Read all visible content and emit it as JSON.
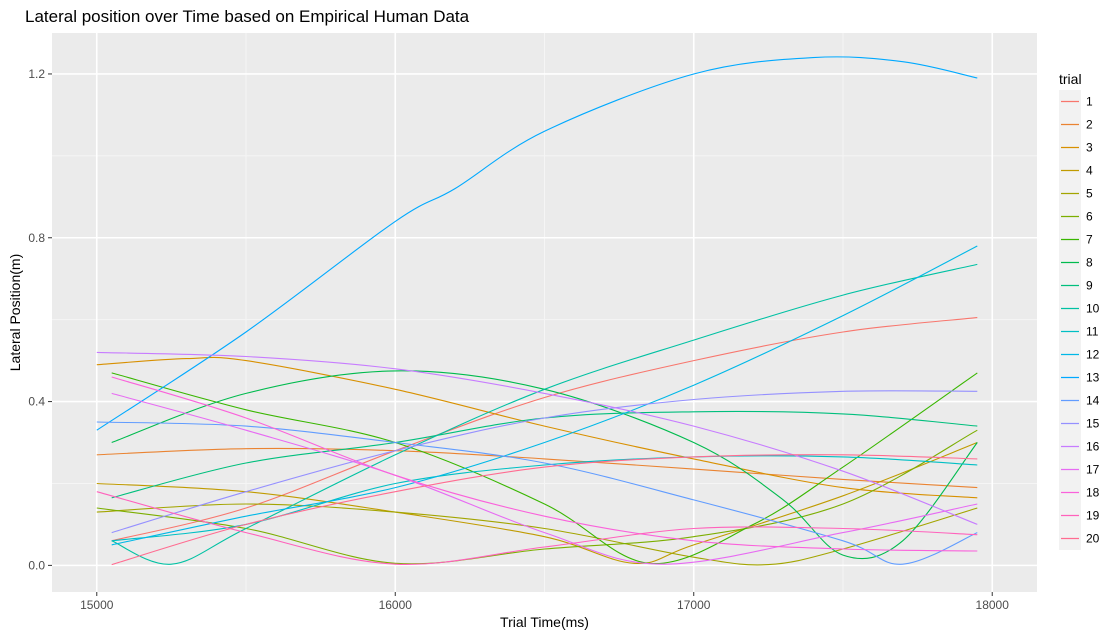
{
  "chart_data": {
    "type": "line",
    "title": "Lateral position over Time based on Empirical Human Data",
    "xlabel": "Trial Time(ms)",
    "ylabel": "Lateral Position(m)",
    "xlim": [
      14850,
      18150
    ],
    "ylim": [
      -0.065,
      1.3
    ],
    "xticks": [
      15000,
      16000,
      17000,
      18000
    ],
    "yticks": [
      0.0,
      0.4,
      0.8,
      1.2
    ],
    "ytick_labels": [
      "0.0",
      "0.4",
      "0.8",
      "1.2"
    ],
    "grid": true,
    "legend": {
      "title": "trial",
      "placement": "right"
    },
    "series": [
      {
        "name": "1",
        "color": "#F8766D",
        "points": [
          [
            15050,
            0.06
          ],
          [
            15500,
            0.14
          ],
          [
            16000,
            0.28
          ],
          [
            16500,
            0.41
          ],
          [
            17000,
            0.5
          ],
          [
            17500,
            0.57
          ],
          [
            17950,
            0.605
          ]
        ]
      },
      {
        "name": "2",
        "color": "#EA8331",
        "points": [
          [
            15000,
            0.27
          ],
          [
            15500,
            0.285
          ],
          [
            16000,
            0.28
          ],
          [
            16500,
            0.26
          ],
          [
            17000,
            0.235
          ],
          [
            17500,
            0.21
          ],
          [
            17950,
            0.19
          ]
        ]
      },
      {
        "name": "3",
        "color": "#D89000",
        "points": [
          [
            15000,
            0.49
          ],
          [
            15300,
            0.505
          ],
          [
            15500,
            0.5
          ],
          [
            16000,
            0.43
          ],
          [
            16500,
            0.34
          ],
          [
            17000,
            0.26
          ],
          [
            17500,
            0.19
          ],
          [
            17950,
            0.165
          ]
        ]
      },
      {
        "name": "4",
        "color": "#C09B00",
        "points": [
          [
            15000,
            0.2
          ],
          [
            15500,
            0.18
          ],
          [
            16000,
            0.13
          ],
          [
            16500,
            0.07
          ],
          [
            16800,
            0.005
          ],
          [
            17000,
            0.05
          ],
          [
            17500,
            0.17
          ],
          [
            17950,
            0.3
          ]
        ]
      },
      {
        "name": "5",
        "color": "#A3A500",
        "points": [
          [
            15000,
            0.13
          ],
          [
            15500,
            0.15
          ],
          [
            16000,
            0.13
          ],
          [
            16500,
            0.09
          ],
          [
            17000,
            0.02
          ],
          [
            17250,
            0.002
          ],
          [
            17500,
            0.04
          ],
          [
            17950,
            0.14
          ]
        ]
      },
      {
        "name": "6",
        "color": "#7CAE00",
        "points": [
          [
            15000,
            0.14
          ],
          [
            15500,
            0.09
          ],
          [
            16000,
            0.005
          ],
          [
            16500,
            0.04
          ],
          [
            17000,
            0.07
          ],
          [
            17500,
            0.15
          ],
          [
            17950,
            0.33
          ]
        ]
      },
      {
        "name": "7",
        "color": "#39B600",
        "points": [
          [
            15050,
            0.47
          ],
          [
            15500,
            0.38
          ],
          [
            16000,
            0.3
          ],
          [
            16500,
            0.15
          ],
          [
            16850,
            0.005
          ],
          [
            17200,
            0.1
          ],
          [
            17500,
            0.24
          ],
          [
            17950,
            0.47
          ]
        ]
      },
      {
        "name": "8",
        "color": "#00BB4E",
        "points": [
          [
            15050,
            0.3
          ],
          [
            15500,
            0.42
          ],
          [
            16000,
            0.475
          ],
          [
            16500,
            0.43
          ],
          [
            17000,
            0.3
          ],
          [
            17300,
            0.16
          ],
          [
            17500,
            0.025
          ],
          [
            17700,
            0.06
          ],
          [
            17950,
            0.3
          ]
        ]
      },
      {
        "name": "9",
        "color": "#00BF7D",
        "points": [
          [
            15050,
            0.165
          ],
          [
            15500,
            0.25
          ],
          [
            16000,
            0.3
          ],
          [
            16500,
            0.36
          ],
          [
            17000,
            0.375
          ],
          [
            17500,
            0.37
          ],
          [
            17950,
            0.34
          ]
        ]
      },
      {
        "name": "10",
        "color": "#00C1A3",
        "points": [
          [
            15050,
            0.06
          ],
          [
            15250,
            0.003
          ],
          [
            15500,
            0.09
          ],
          [
            16000,
            0.27
          ],
          [
            16500,
            0.43
          ],
          [
            17000,
            0.55
          ],
          [
            17500,
            0.66
          ],
          [
            17950,
            0.735
          ]
        ]
      },
      {
        "name": "11",
        "color": "#00BFC4",
        "points": [
          [
            15050,
            0.06
          ],
          [
            15500,
            0.1
          ],
          [
            16000,
            0.2
          ],
          [
            16500,
            0.245
          ],
          [
            17000,
            0.265
          ],
          [
            17500,
            0.265
          ],
          [
            17950,
            0.245
          ]
        ]
      },
      {
        "name": "12",
        "color": "#00B8E7",
        "points": [
          [
            15050,
            0.05
          ],
          [
            15500,
            0.12
          ],
          [
            16000,
            0.19
          ],
          [
            16500,
            0.3
          ],
          [
            17000,
            0.44
          ],
          [
            17500,
            0.61
          ],
          [
            17950,
            0.78
          ]
        ]
      },
      {
        "name": "13",
        "color": "#00A9FF",
        "points": [
          [
            15000,
            0.33
          ],
          [
            15500,
            0.57
          ],
          [
            16000,
            0.84
          ],
          [
            16200,
            0.92
          ],
          [
            16500,
            1.06
          ],
          [
            17000,
            1.2
          ],
          [
            17400,
            1.24
          ],
          [
            17700,
            1.23
          ],
          [
            17950,
            1.19
          ]
        ]
      },
      {
        "name": "14",
        "color": "#619CFF",
        "points": [
          [
            15000,
            0.35
          ],
          [
            15500,
            0.34
          ],
          [
            16000,
            0.3
          ],
          [
            16500,
            0.25
          ],
          [
            17000,
            0.16
          ],
          [
            17500,
            0.06
          ],
          [
            17700,
            0.003
          ],
          [
            17950,
            0.08
          ]
        ]
      },
      {
        "name": "15",
        "color": "#9590FF",
        "points": [
          [
            15050,
            0.08
          ],
          [
            15500,
            0.18
          ],
          [
            16000,
            0.28
          ],
          [
            16500,
            0.36
          ],
          [
            17000,
            0.405
          ],
          [
            17500,
            0.425
          ],
          [
            17950,
            0.425
          ]
        ]
      },
      {
        "name": "16",
        "color": "#C77CFF",
        "points": [
          [
            15000,
            0.52
          ],
          [
            15500,
            0.51
          ],
          [
            16000,
            0.48
          ],
          [
            16500,
            0.42
          ],
          [
            17000,
            0.34
          ],
          [
            17500,
            0.23
          ],
          [
            17950,
            0.1
          ]
        ]
      },
      {
        "name": "17",
        "color": "#E76BF3",
        "points": [
          [
            15050,
            0.42
          ],
          [
            15500,
            0.33
          ],
          [
            16000,
            0.22
          ],
          [
            16500,
            0.08
          ],
          [
            16900,
            0.003
          ],
          [
            17500,
            0.08
          ],
          [
            17950,
            0.15
          ]
        ]
      },
      {
        "name": "18",
        "color": "#FA62DB",
        "points": [
          [
            15050,
            0.46
          ],
          [
            15500,
            0.36
          ],
          [
            16000,
            0.22
          ],
          [
            16500,
            0.12
          ],
          [
            17000,
            0.06
          ],
          [
            17500,
            0.04
          ],
          [
            17950,
            0.035
          ]
        ]
      },
      {
        "name": "19",
        "color": "#FF62BC",
        "points": [
          [
            15000,
            0.18
          ],
          [
            15500,
            0.08
          ],
          [
            16000,
            0.003
          ],
          [
            16500,
            0.045
          ],
          [
            17000,
            0.09
          ],
          [
            17500,
            0.09
          ],
          [
            17950,
            0.075
          ]
        ]
      },
      {
        "name": "20",
        "color": "#FF6C91",
        "points": [
          [
            15050,
            0.002
          ],
          [
            15500,
            0.1
          ],
          [
            16000,
            0.18
          ],
          [
            16500,
            0.24
          ],
          [
            17000,
            0.265
          ],
          [
            17500,
            0.27
          ],
          [
            17950,
            0.26
          ]
        ]
      }
    ]
  }
}
